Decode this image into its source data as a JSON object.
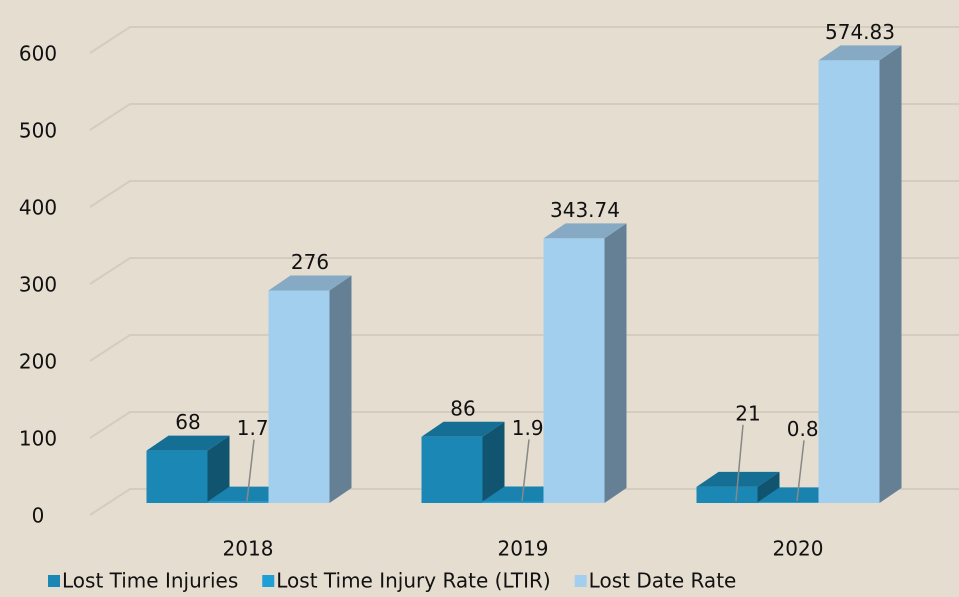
{
  "chart_data": {
    "type": "bar3d",
    "categories": [
      "2018",
      "2019",
      "2020"
    ],
    "series": [
      {
        "name": "Lost Time Injuries",
        "color": "#1a87b5",
        "values": [
          68,
          86,
          21
        ]
      },
      {
        "name": "Lost Time Injury Rate (LTIR)",
        "color": "#1e9fd6",
        "values": [
          1.77,
          1.98,
          0.83
        ]
      },
      {
        "name": "Lost Date Rate",
        "color": "#a3cfee",
        "values": [
          276,
          343.74,
          574.83
        ]
      }
    ],
    "ylim": [
      0,
      600
    ],
    "yticks": [
      0,
      100,
      200,
      300,
      400,
      500,
      600
    ],
    "grid": true
  }
}
